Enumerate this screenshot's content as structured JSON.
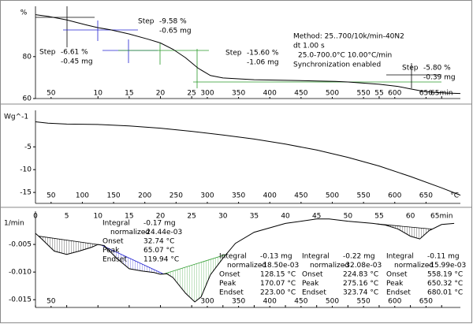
{
  "chart_data": [
    {
      "type": "line",
      "y_unit": "%",
      "color": "#000000",
      "x": [
        0,
        2,
        5,
        8,
        10,
        12,
        15,
        18,
        20,
        22,
        24,
        26,
        28,
        30,
        35,
        40,
        45,
        48,
        50,
        55,
        58,
        60,
        62,
        64,
        66,
        68
      ],
      "values": [
        100,
        99.2,
        97.5,
        95.2,
        93.8,
        92.8,
        90.8,
        88.3,
        86.5,
        83.5,
        79.5,
        74.5,
        71.0,
        69.8,
        69.0,
        68.7,
        68.4,
        68.2,
        67.9,
        66.8,
        65.8,
        64.6,
        63.5,
        62.9,
        62.6,
        62.4
      ],
      "xlim": [
        0,
        68
      ],
      "xticks": [
        10,
        15,
        20,
        25,
        55,
        {
          "value": 65,
          "label": "65min"
        }
      ],
      "x2lim": [
        25,
        705
      ],
      "x2ticks": [
        50,
        300,
        350,
        400,
        450,
        500,
        550,
        600,
        650
      ],
      "ylim": [
        60,
        104
      ],
      "yticks": [
        60,
        80
      ],
      "steps": [
        {
          "label": "Step",
          "color": "#000000",
          "percent": "-6.61 %",
          "mass": "-0.45 mg"
        },
        {
          "label": "Step",
          "color": "#2020d0",
          "percent": "-9.58 %",
          "mass": "-0.65 mg"
        },
        {
          "label": "Step",
          "color": "#2a9a2a",
          "percent": "-15.60 %",
          "mass": "-1.06 mg"
        },
        {
          "label": "Step",
          "color": "#000000",
          "percent": "-5.80 %",
          "mass": "-0.39 mg"
        }
      ],
      "method": [
        "Method: 25..700/10k/min-40N2",
        "dt 1.00 s",
        "25.0-700.0°C 10.00°C/min",
        "Synchronization enabled"
      ]
    },
    {
      "type": "line",
      "y_unit": "Wg^-1",
      "color": "#000000",
      "x": [
        0,
        2,
        5,
        10,
        15,
        20,
        25,
        30,
        35,
        40,
        45,
        50,
        55,
        60,
        65,
        68
      ],
      "values": [
        0.5,
        0.2,
        0.0,
        -0.1,
        -0.4,
        -0.9,
        -1.6,
        -2.4,
        -3.3,
        -4.4,
        -5.7,
        -7.3,
        -9.2,
        -11.5,
        -14.0,
        -15.6
      ],
      "xlim": [
        0,
        68
      ],
      "xticks": [],
      "x2lim": [
        25,
        705
      ],
      "x2ticks": [
        50,
        100,
        150,
        200,
        250,
        300,
        350,
        400,
        450,
        500,
        550,
        600,
        650
      ],
      "x2_unit": "°C",
      "ylim": [
        -17.4,
        3
      ],
      "yticks": [
        -15,
        -10,
        -5
      ]
    },
    {
      "type": "line",
      "y_unit": "1/min",
      "color": "#000000",
      "x": [
        0,
        1,
        3,
        5,
        7,
        9,
        10,
        11,
        13,
        15,
        17,
        19,
        20,
        21,
        22,
        24,
        25.5,
        26.5,
        28,
        30,
        32,
        35,
        40,
        45,
        47,
        50,
        54,
        56,
        58,
        60,
        61.5,
        63,
        65,
        67
      ],
      "values": [
        -0.003,
        -0.004,
        -0.0062,
        -0.0068,
        -0.0062,
        -0.0055,
        -0.005,
        -0.0052,
        -0.0075,
        -0.0094,
        -0.0098,
        -0.0101,
        -0.0104,
        -0.0103,
        -0.011,
        -0.0138,
        -0.0154,
        -0.0145,
        -0.0105,
        -0.0075,
        -0.0048,
        -0.0028,
        -0.0012,
        -0.0004,
        -0.0004,
        -0.0008,
        -0.0012,
        -0.0015,
        -0.0022,
        -0.0035,
        -0.004,
        -0.0025,
        -0.0014,
        -0.0012
      ],
      "xlim": [
        0,
        68
      ],
      "xticks": [
        0,
        5,
        10,
        15,
        20,
        25,
        30,
        35,
        40,
        45,
        50,
        55,
        60,
        {
          "value": 65,
          "label": "65min"
        }
      ],
      "x2lim": [
        25,
        705
      ],
      "x2ticks": [
        50,
        300,
        350,
        400,
        450,
        500,
        550,
        600,
        650
      ],
      "ylim": [
        -0.0164,
        0.001
      ],
      "yticks": [
        {
          "value": -0.005,
          "label": "-0.005"
        },
        {
          "value": -0.01,
          "label": "-0.010"
        },
        {
          "value": -0.015,
          "label": "-0.015"
        }
      ],
      "integrals": [
        {
          "color": "#000000",
          "rows": [
            [
              "Integral",
              "-0.17 mg"
            ],
            [
              "normalized",
              "-24.44e-03"
            ],
            [
              "Onset",
              "32.74 °C"
            ],
            [
              "Peak",
              "65.07 °C"
            ],
            [
              "Endset",
              "119.94 °C"
            ]
          ]
        },
        {
          "color": "#2020d0",
          "rows": [
            [
              "Integral",
              "-0.13 mg"
            ],
            [
              "normalized",
              "-18.50e-03"
            ],
            [
              "Onset",
              "128.15 °C"
            ],
            [
              "Peak",
              "170.07 °C"
            ],
            [
              "Endset",
              "223.00 °C"
            ]
          ]
        },
        {
          "color": "#2a9a2a",
          "rows": [
            [
              "Integral",
              "-0.22 mg"
            ],
            [
              "normalized",
              "-32.08e-03"
            ],
            [
              "Onset",
              "224.83 °C"
            ],
            [
              "Peak",
              "275.16 °C"
            ],
            [
              "Endset",
              "323.74 °C"
            ]
          ]
        },
        {
          "color": "#000000",
          "rows": [
            [
              "Integral",
              "-0.11 mg"
            ],
            [
              "normalized",
              "-15.99e-03"
            ],
            [
              "Onset",
              "558.19 °C"
            ],
            [
              "Peak",
              "650.32 °C"
            ],
            [
              "Endset",
              "680.01 °C"
            ]
          ]
        }
      ]
    }
  ]
}
